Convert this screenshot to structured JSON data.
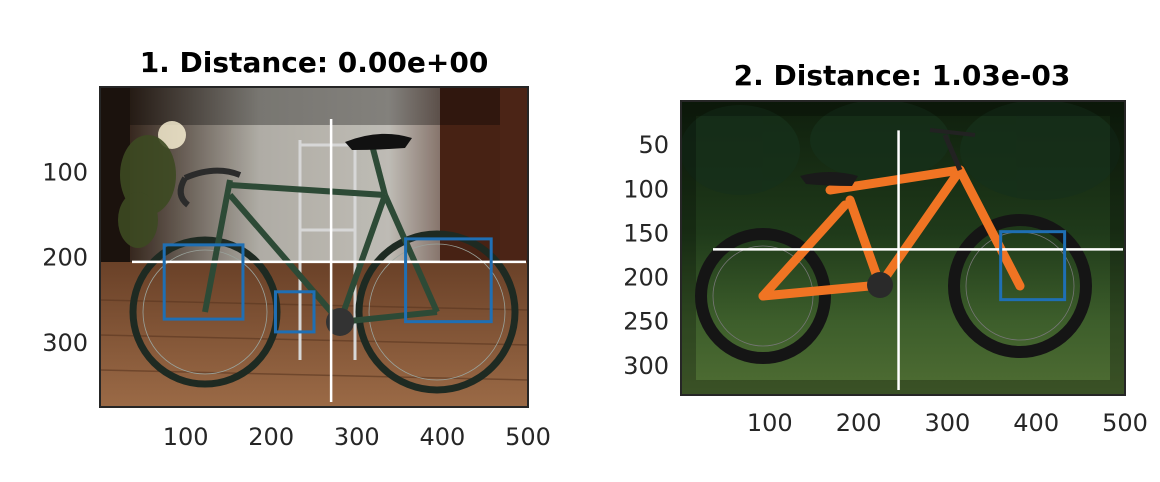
{
  "chart_data": [
    {
      "type": "image",
      "title": "1. Distance: 0.00e+00",
      "xlim": [
        0,
        500
      ],
      "ylim": [
        375,
        0
      ],
      "x_ticks": [
        100,
        200,
        300,
        400,
        500
      ],
      "y_ticks": [
        100,
        200,
        300
      ],
      "image_content": "photo of a dark green road bicycle indoors on a wooden floor",
      "crosshair": {
        "x": 270,
        "y": 205
      },
      "boxes": [
        {
          "x0": 75,
          "y0": 185,
          "x1": 167,
          "y1": 272
        },
        {
          "x0": 205,
          "y0": 240,
          "x1": 250,
          "y1": 287
        },
        {
          "x0": 357,
          "y0": 178,
          "x1": 457,
          "y1": 275
        }
      ],
      "colors": {
        "box": "#1f6fb4",
        "crosshair": "#ffffff"
      }
    },
    {
      "type": "image",
      "title": "2. Distance: 1.03e-03",
      "xlim": [
        0,
        500
      ],
      "ylim": [
        333,
        0
      ],
      "x_ticks": [
        100,
        200,
        300,
        400,
        500
      ],
      "y_ticks": [
        50,
        100,
        150,
        200,
        250,
        300
      ],
      "image_content": "photo of an orange full-suspension mountain bike on grass",
      "crosshair": {
        "x": 245,
        "y": 168
      },
      "boxes": [
        {
          "x0": 360,
          "y0": 148,
          "x1": 432,
          "y1": 225
        }
      ],
      "colors": {
        "box": "#1f6fb4",
        "crosshair": "#ffffff"
      }
    }
  ]
}
